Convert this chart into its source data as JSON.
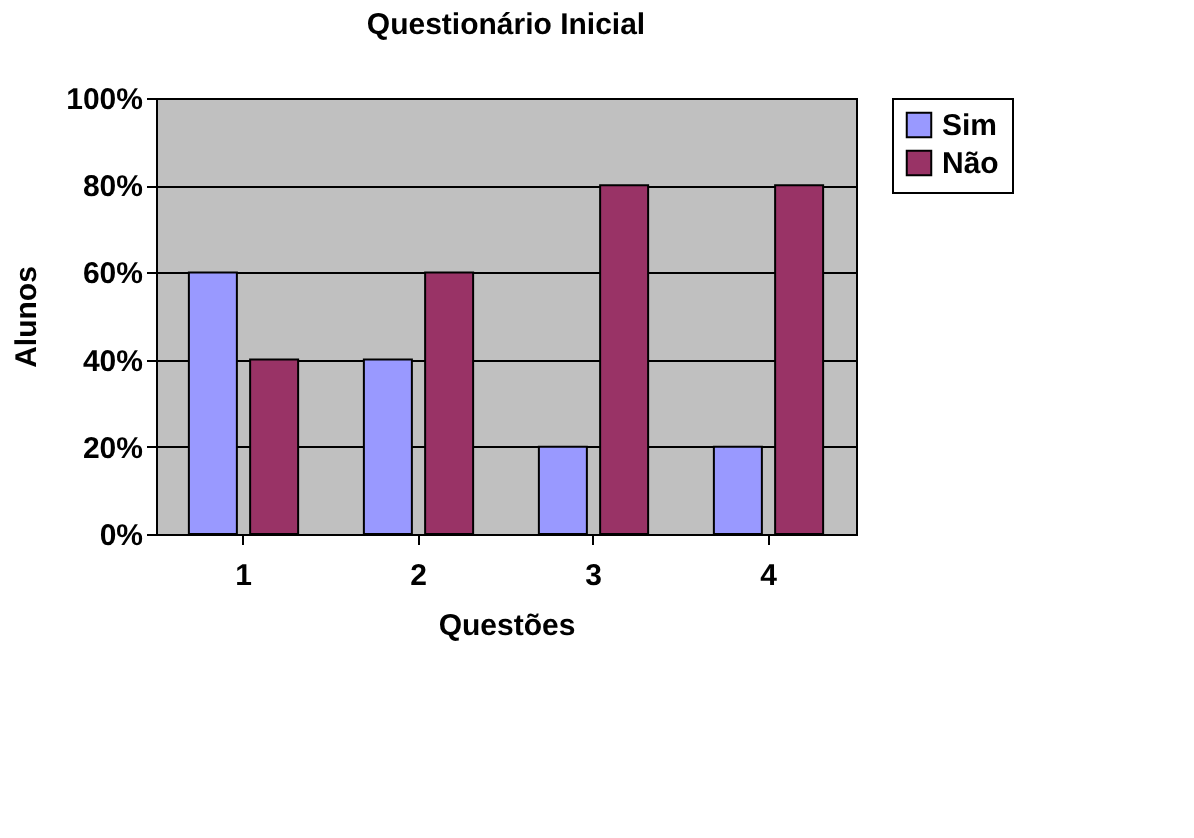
{
  "chart_data": {
    "type": "bar",
    "title": "Questionário Inicial",
    "xlabel": "Questões",
    "ylabel": "Alunos",
    "categories": [
      "1",
      "2",
      "3",
      "4"
    ],
    "series": [
      {
        "name": "Sim",
        "color": "#9999ff",
        "values": [
          60,
          40,
          20,
          20
        ]
      },
      {
        "name": "Não",
        "color": "#993366",
        "values": [
          40,
          60,
          80,
          80
        ]
      }
    ],
    "ylim": [
      0,
      100
    ],
    "yticks": [
      {
        "value": 0,
        "label": "0%"
      },
      {
        "value": 20,
        "label": "20%"
      },
      {
        "value": 40,
        "label": "40%"
      },
      {
        "value": 60,
        "label": "60%"
      },
      {
        "value": 80,
        "label": "80%"
      },
      {
        "value": 100,
        "label": "100%"
      }
    ],
    "grid": "y",
    "legend": "right"
  }
}
